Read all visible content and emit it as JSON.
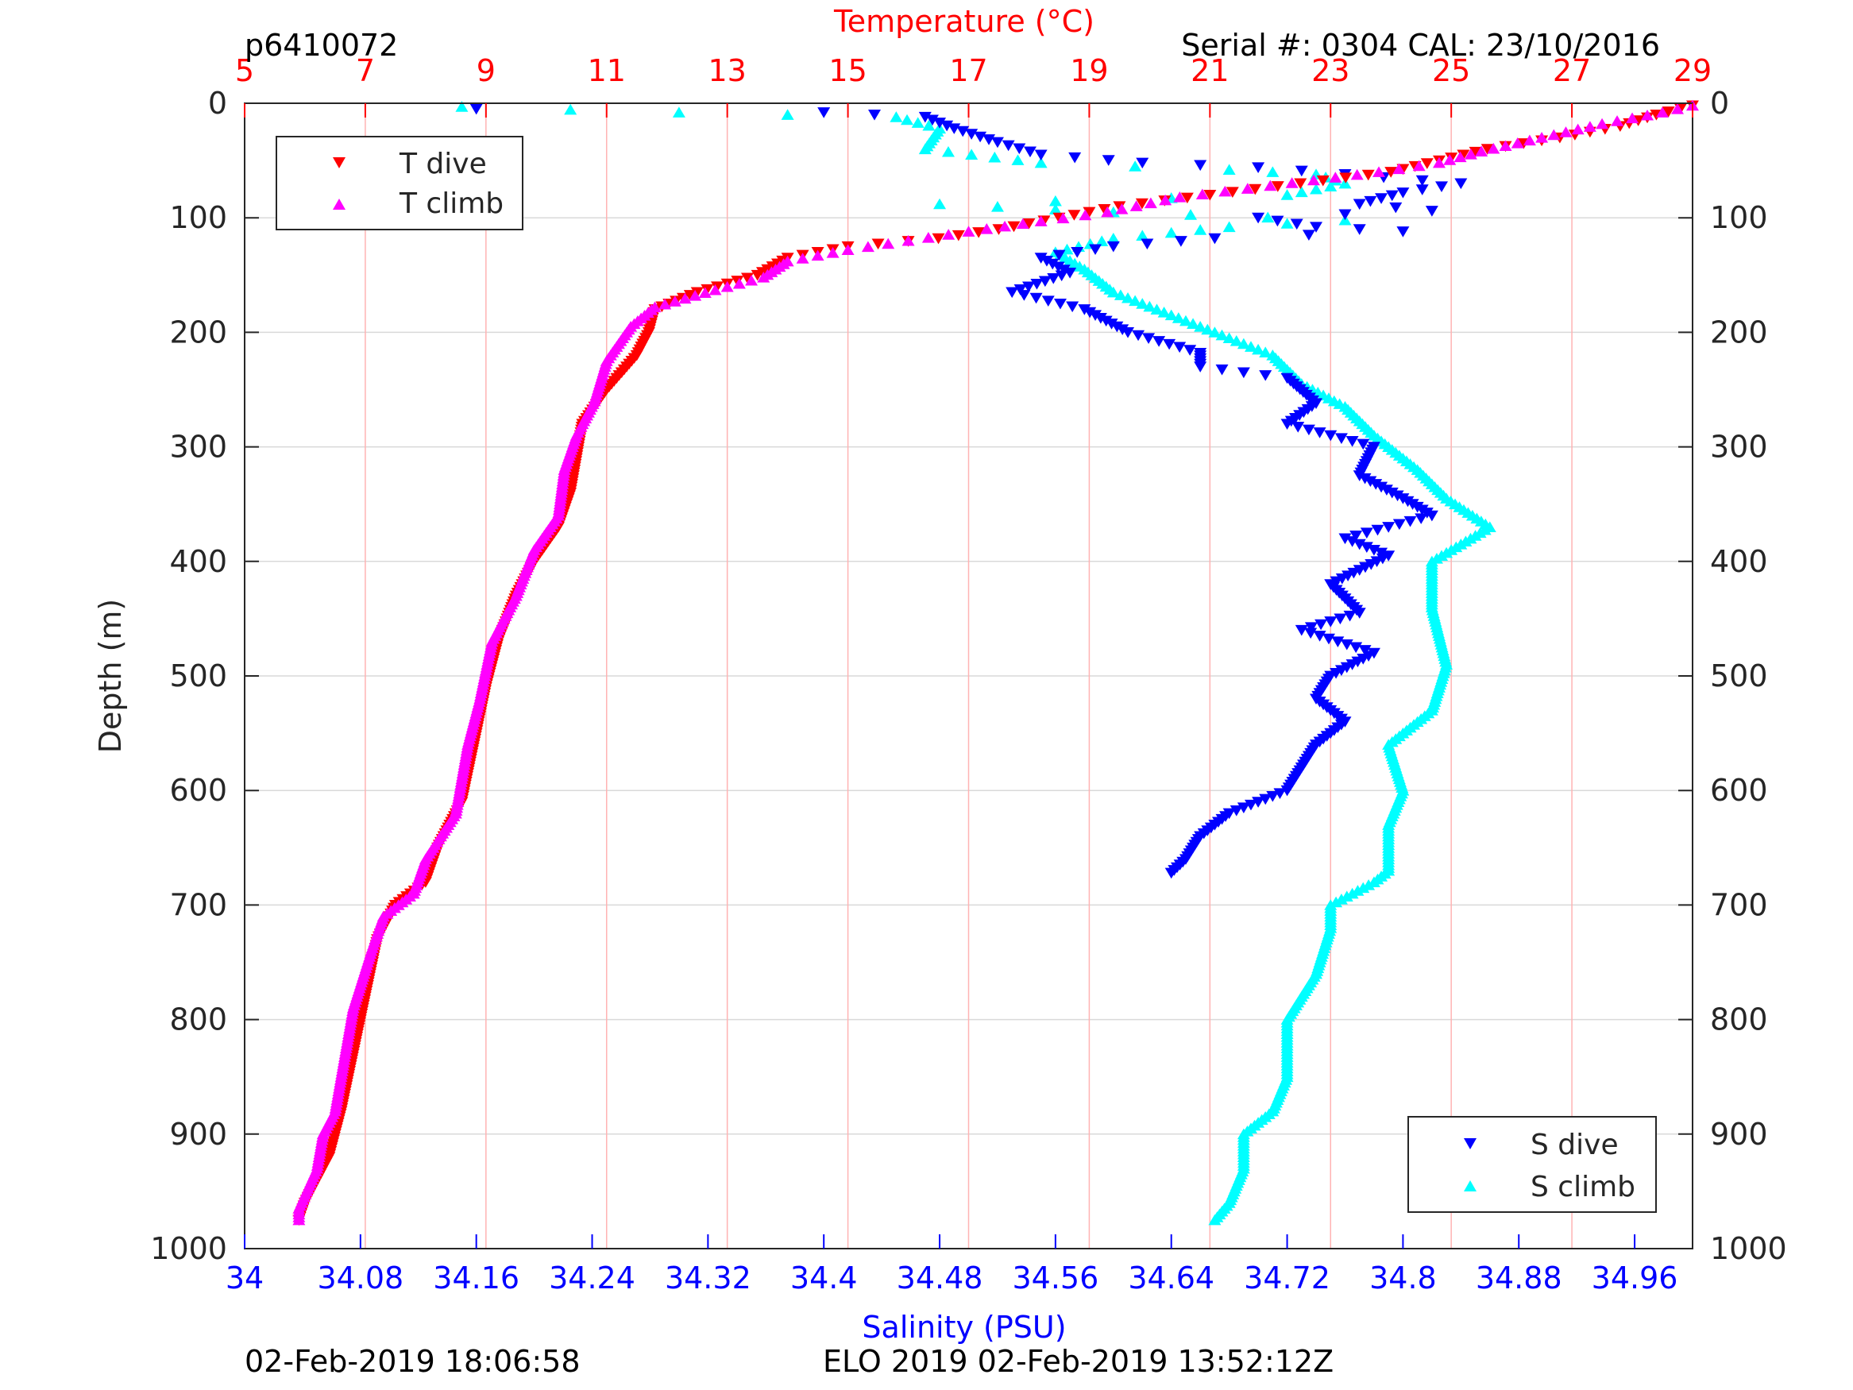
{
  "chart_data": {
    "type": "scatter",
    "header": {
      "profile_id": "p6410072",
      "serial": "Serial #: 0304  CAL: 23/10/2016"
    },
    "footer": {
      "left": "02-Feb-2019 18:06:58",
      "center": "ELO 2019 02-Feb-2019 13:52:12Z"
    },
    "axes": {
      "y": {
        "label": "Depth (m)",
        "range": [
          0,
          1000
        ],
        "reversed": true,
        "ticks": [
          0,
          100,
          200,
          300,
          400,
          500,
          600,
          700,
          800,
          900,
          1000
        ]
      },
      "x_top": {
        "label": "Temperature (°C)",
        "range": [
          5,
          29
        ],
        "ticks": [
          5,
          7,
          9,
          11,
          13,
          15,
          17,
          19,
          21,
          23,
          25,
          27,
          29
        ],
        "color": "#ff0000",
        "grid": true
      },
      "x_bottom": {
        "label": "Salinity (PSU)",
        "range": [
          34.0,
          35.0
        ],
        "ticks": [
          34,
          34.08,
          34.16,
          34.24,
          34.32,
          34.4,
          34.48,
          34.56,
          34.64,
          34.72,
          34.8,
          34.88,
          34.96
        ],
        "tick_labels": [
          "34",
          "34.08",
          "34.16",
          "34.24",
          "34.32",
          "34.4",
          "34.48",
          "34.56",
          "34.64",
          "34.72",
          "34.8",
          "34.88",
          "34.96"
        ],
        "color": "#0000ff"
      }
    },
    "legends": {
      "temperature": {
        "placement": "top-left",
        "entries": [
          "T dive",
          "T climb"
        ]
      },
      "salinity": {
        "placement": "bottom-right",
        "entries": [
          "S dive",
          "S climb"
        ]
      }
    },
    "colors": {
      "t_dive": "#ff0000",
      "t_climb": "#ff00ff",
      "s_dive": "#0000ff",
      "s_climb": "#00ffff",
      "h_grid": "#d9d9d9",
      "v_grid": "#ffb3b3"
    },
    "series": [
      {
        "name": "T dive",
        "axis": "temperature",
        "marker": "triangle-down",
        "color": "#ff0000",
        "points": [
          [
            29.0,
            2
          ],
          [
            28.4,
            10
          ],
          [
            27.8,
            20
          ],
          [
            26.8,
            30
          ],
          [
            25.6,
            40
          ],
          [
            24.8,
            50
          ],
          [
            24.0,
            60
          ],
          [
            22.5,
            70
          ],
          [
            21.0,
            80
          ],
          [
            19.5,
            90
          ],
          [
            18.5,
            100
          ],
          [
            17.5,
            110
          ],
          [
            16.5,
            118
          ],
          [
            15.0,
            125
          ],
          [
            14.0,
            135
          ],
          [
            13.5,
            150
          ],
          [
            12.5,
            165
          ],
          [
            11.8,
            180
          ],
          [
            11.7,
            200
          ],
          [
            11.5,
            220
          ],
          [
            11.0,
            250
          ],
          [
            10.6,
            280
          ],
          [
            10.5,
            310
          ],
          [
            10.4,
            340
          ],
          [
            10.2,
            370
          ],
          [
            9.8,
            400
          ],
          [
            9.5,
            430
          ],
          [
            9.2,
            470
          ],
          [
            9.0,
            510
          ],
          [
            8.8,
            560
          ],
          [
            8.6,
            610
          ],
          [
            8.2,
            650
          ],
          [
            8.0,
            680
          ],
          [
            7.5,
            700
          ],
          [
            7.2,
            730
          ],
          [
            7.0,
            780
          ],
          [
            6.8,
            830
          ],
          [
            6.6,
            880
          ],
          [
            6.4,
            920
          ],
          [
            6.0,
            960
          ],
          [
            5.9,
            975
          ]
        ]
      },
      {
        "name": "T climb",
        "axis": "temperature",
        "marker": "triangle-up",
        "color": "#ff00ff",
        "points": [
          [
            29.0,
            2
          ],
          [
            28.5,
            8
          ],
          [
            27.5,
            18
          ],
          [
            26.5,
            30
          ],
          [
            25.5,
            42
          ],
          [
            24.8,
            52
          ],
          [
            23.8,
            60
          ],
          [
            22.0,
            72
          ],
          [
            20.5,
            82
          ],
          [
            19.3,
            95
          ],
          [
            18.2,
            103
          ],
          [
            17.0,
            112
          ],
          [
            16.0,
            120
          ],
          [
            15.0,
            128
          ],
          [
            14.0,
            138
          ],
          [
            13.6,
            152
          ],
          [
            12.8,
            163
          ],
          [
            11.8,
            178
          ],
          [
            11.4,
            195
          ],
          [
            11.0,
            225
          ],
          [
            10.8,
            260
          ],
          [
            10.5,
            290
          ],
          [
            10.3,
            320
          ],
          [
            10.2,
            360
          ],
          [
            9.8,
            390
          ],
          [
            9.5,
            430
          ],
          [
            9.1,
            470
          ],
          [
            8.9,
            520
          ],
          [
            8.7,
            560
          ],
          [
            8.5,
            620
          ],
          [
            8.0,
            660
          ],
          [
            7.8,
            690
          ],
          [
            7.3,
            710
          ],
          [
            7.1,
            740
          ],
          [
            6.8,
            790
          ],
          [
            6.6,
            850
          ],
          [
            6.5,
            880
          ],
          [
            6.3,
            900
          ],
          [
            6.2,
            930
          ],
          [
            5.9,
            965
          ],
          [
            5.9,
            975
          ]
        ]
      },
      {
        "name": "S dive",
        "axis": "salinity",
        "marker": "triangle-down",
        "color": "#0000ff",
        "points": [
          [
            34.16,
            5
          ],
          [
            34.4,
            8
          ],
          [
            34.47,
            12
          ],
          [
            34.49,
            22
          ],
          [
            34.52,
            34
          ],
          [
            34.55,
            45
          ],
          [
            34.62,
            52
          ],
          [
            34.7,
            56
          ],
          [
            34.76,
            62
          ],
          [
            34.84,
            70
          ],
          [
            34.8,
            78
          ],
          [
            34.77,
            88
          ],
          [
            34.82,
            94
          ],
          [
            34.7,
            100
          ],
          [
            34.74,
            108
          ],
          [
            34.8,
            112
          ],
          [
            34.67,
            118
          ],
          [
            34.6,
            125
          ],
          [
            34.55,
            135
          ],
          [
            34.57,
            148
          ],
          [
            34.53,
            165
          ],
          [
            34.58,
            180
          ],
          [
            34.61,
            200
          ],
          [
            34.66,
            218
          ],
          [
            34.66,
            230
          ],
          [
            34.72,
            240
          ],
          [
            34.74,
            262
          ],
          [
            34.72,
            280
          ],
          [
            34.78,
            300
          ],
          [
            34.77,
            325
          ],
          [
            34.8,
            345
          ],
          [
            34.82,
            360
          ],
          [
            34.76,
            380
          ],
          [
            34.79,
            395
          ],
          [
            34.75,
            420
          ],
          [
            34.77,
            445
          ],
          [
            34.73,
            460
          ],
          [
            34.78,
            480
          ],
          [
            34.75,
            500
          ],
          [
            34.74,
            520
          ],
          [
            34.76,
            540
          ],
          [
            34.74,
            560
          ],
          [
            34.73,
            580
          ],
          [
            34.72,
            600
          ],
          [
            34.68,
            620
          ],
          [
            34.66,
            640
          ],
          [
            34.65,
            660
          ],
          [
            34.64,
            672
          ]
        ]
      },
      {
        "name": "S climb",
        "axis": "salinity",
        "marker": "triangle-up",
        "color": "#00ffff",
        "points": [
          [
            34.15,
            3
          ],
          [
            34.3,
            8
          ],
          [
            34.45,
            12
          ],
          [
            34.48,
            22
          ],
          [
            34.47,
            40
          ],
          [
            34.55,
            52
          ],
          [
            34.68,
            58
          ],
          [
            34.74,
            62
          ],
          [
            34.76,
            70
          ],
          [
            34.72,
            80
          ],
          [
            34.48,
            88
          ],
          [
            34.6,
            95
          ],
          [
            34.76,
            102
          ],
          [
            34.68,
            108
          ],
          [
            34.6,
            118
          ],
          [
            34.56,
            130
          ],
          [
            34.58,
            145
          ],
          [
            34.6,
            165
          ],
          [
            34.64,
            185
          ],
          [
            34.67,
            200
          ],
          [
            34.71,
            220
          ],
          [
            34.73,
            245
          ],
          [
            34.76,
            265
          ],
          [
            34.78,
            290
          ],
          [
            34.81,
            320
          ],
          [
            34.83,
            345
          ],
          [
            34.86,
            370
          ],
          [
            34.82,
            400
          ],
          [
            34.82,
            440
          ],
          [
            34.83,
            490
          ],
          [
            34.82,
            530
          ],
          [
            34.79,
            560
          ],
          [
            34.8,
            600
          ],
          [
            34.79,
            630
          ],
          [
            34.79,
            670
          ],
          [
            34.78,
            680
          ],
          [
            34.75,
            700
          ],
          [
            34.75,
            720
          ],
          [
            34.74,
            760
          ],
          [
            34.72,
            800
          ],
          [
            34.72,
            850
          ],
          [
            34.71,
            880
          ],
          [
            34.69,
            900
          ],
          [
            34.69,
            930
          ],
          [
            34.68,
            960
          ],
          [
            34.67,
            975
          ]
        ]
      }
    ]
  }
}
